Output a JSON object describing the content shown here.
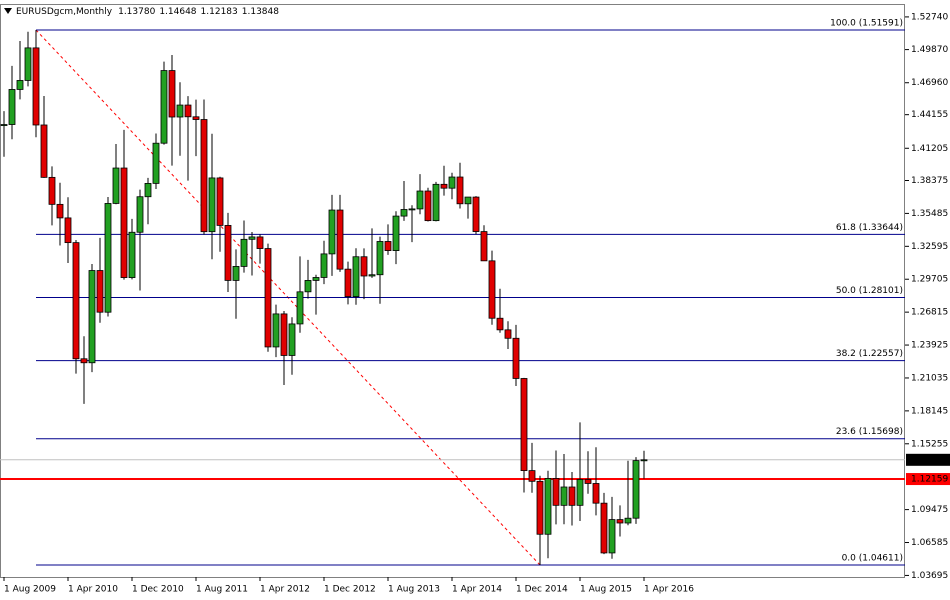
{
  "chart_data": {
    "type": "candlestick",
    "title": "EURUSDgcm,Monthly",
    "header_labels": [
      "1.13780",
      "1.14648",
      "1.12183",
      "1.13848"
    ],
    "categories": [
      "1 Aug 2009",
      null,
      null,
      null,
      null,
      null,
      null,
      null,
      "1 Apr 2010",
      null,
      null,
      null,
      null,
      null,
      null,
      null,
      "1 Dec 2010",
      null,
      null,
      null,
      null,
      null,
      null,
      null,
      "1 Aug 2011",
      null,
      null,
      null,
      null,
      null,
      null,
      null,
      "1 Apr 2012",
      null,
      null,
      null,
      null,
      null,
      null,
      null,
      "1 Dec 2012",
      null,
      null,
      null,
      null,
      null,
      null,
      null,
      "1 Aug 2013",
      null,
      null,
      null,
      null,
      null,
      null,
      null,
      "1 Apr 2014",
      null,
      null,
      null,
      null,
      null,
      null,
      null,
      "1 Dec 2014",
      null,
      null,
      null,
      null,
      null,
      null,
      null,
      "1 Aug 2015",
      null,
      null,
      null,
      null,
      null,
      null,
      null,
      "1 Apr 2016"
    ],
    "open": [
      1.432,
      1.4329,
      1.4637,
      1.4716,
      1.5002,
      1.4325,
      1.3865,
      1.3628,
      1.3509,
      1.3292,
      1.2272,
      1.2237,
      1.3047,
      1.2681,
      1.3636,
      1.3947,
      1.2985,
      1.3383,
      1.3695,
      1.3812,
      1.4165,
      1.4803,
      1.4395,
      1.45,
      1.4397,
      1.4373,
      1.3388,
      1.386,
      1.3443,
      1.296,
      1.3083,
      1.3321,
      1.3342,
      1.324,
      1.2376,
      1.2666,
      1.2301,
      1.2578,
      1.286,
      1.296,
      1.2986,
      1.3193,
      1.3578,
      1.3059,
      1.2818,
      1.3168,
      1.2999,
      1.301,
      1.3302,
      1.3222,
      1.3525,
      1.3583,
      1.3588,
      1.3745,
      1.3485,
      1.3804,
      1.377,
      1.3868,
      1.3633,
      1.3692,
      1.3389,
      1.3132,
      1.2628,
      1.2526,
      1.2452,
      1.2099,
      1.129,
      1.1196,
      1.0731,
      1.1221,
      1.0985,
      1.1146,
      1.0985,
      1.1212,
      1.1177,
      1.1004,
      1.0567,
      1.086,
      1.083,
      1.0872,
      1.1378
    ],
    "high": [
      1.4447,
      1.4844,
      1.5062,
      1.5144,
      1.51591,
      1.458,
      1.3962,
      1.3818,
      1.369,
      1.3315,
      1.247,
      1.3104,
      1.3334,
      1.3693,
      1.4158,
      1.4282,
      1.35,
      1.3757,
      1.3861,
      1.425,
      1.4881,
      1.494,
      1.47,
      1.4578,
      1.4548,
      1.4549,
      1.4248,
      1.387,
      1.3553,
      1.3233,
      1.3486,
      1.3385,
      1.3363,
      1.3283,
      1.2747,
      1.2692,
      1.2637,
      1.3171,
      1.314,
      1.301,
      1.3308,
      1.3711,
      1.3711,
      1.3125,
      1.3243,
      1.3242,
      1.3417,
      1.3345,
      1.3452,
      1.3567,
      1.3833,
      1.362,
      1.3893,
      1.3774,
      1.3825,
      1.3967,
      1.3906,
      1.3993,
      1.3677,
      1.37,
      1.3445,
      1.3222,
      1.2887,
      1.2601,
      1.257,
      1.2104,
      1.1534,
      1.1245,
      1.1289,
      1.1466,
      1.1436,
      1.1278,
      1.1714,
      1.146,
      1.1495,
      1.1094,
      1.1059,
      1.0985,
      1.1376,
      1.1408,
      1.14648
    ],
    "low": [
      1.4046,
      1.42,
      1.455,
      1.4664,
      1.4217,
      1.386,
      1.3443,
      1.3267,
      1.3113,
      1.2142,
      1.1876,
      1.2155,
      1.2588,
      1.2643,
      1.3629,
      1.2967,
      1.2969,
      1.2871,
      1.3453,
      1.3763,
      1.4152,
      1.3968,
      1.4055,
      1.3836,
      1.4051,
      1.3362,
      1.3146,
      1.3212,
      1.2858,
      1.2624,
      1.3029,
      1.3003,
      1.3108,
      1.2334,
      1.2287,
      1.2042,
      1.2132,
      1.25,
      1.28,
      1.266,
      1.2927,
      1.3,
      1.3035,
      1.275,
      1.2746,
      1.2796,
      1.2982,
      1.2755,
      1.3184,
      1.3103,
      1.3483,
      1.3296,
      1.3541,
      1.3477,
      1.3478,
      1.3705,
      1.3673,
      1.3592,
      1.3503,
      1.3366,
      1.3131,
      1.2571,
      1.25,
      1.2358,
      1.2033,
      1.1098,
      1.1095,
      1.04611,
      1.052,
      1.0818,
      1.0819,
      1.0808,
      1.0847,
      1.1087,
      1.0897,
      1.0557,
      1.0516,
      1.0711,
      1.081,
      1.0822,
      1.12183
    ],
    "close": [
      1.4329,
      1.4637,
      1.4716,
      1.5002,
      1.4325,
      1.3865,
      1.3628,
      1.3509,
      1.3292,
      1.2272,
      1.2237,
      1.3047,
      1.2681,
      1.3636,
      1.3947,
      1.2985,
      1.3383,
      1.3695,
      1.3812,
      1.4165,
      1.4803,
      1.4395,
      1.45,
      1.4397,
      1.4373,
      1.3388,
      1.386,
      1.3443,
      1.296,
      1.3083,
      1.3321,
      1.3342,
      1.324,
      1.2376,
      1.2666,
      1.2301,
      1.2578,
      1.286,
      1.296,
      1.2986,
      1.3193,
      1.3578,
      1.3059,
      1.2818,
      1.3168,
      1.2999,
      1.301,
      1.3302,
      1.3222,
      1.3525,
      1.3583,
      1.3588,
      1.3745,
      1.3485,
      1.3804,
      1.377,
      1.3868,
      1.3633,
      1.3692,
      1.3389,
      1.3132,
      1.2628,
      1.2526,
      1.2452,
      1.2099,
      1.129,
      1.1196,
      1.0731,
      1.1221,
      1.0985,
      1.1146,
      1.0985,
      1.1212,
      1.1177,
      1.1004,
      1.0567,
      1.086,
      1.083,
      1.0872,
      1.1378,
      1.13848
    ],
    "up_color": "#22a022",
    "down_color": "#e00000",
    "ylim": [
      1.03557,
      1.53786
    ],
    "yticks": [
      {
        "value": 1.5274,
        "label": "1.52740"
      },
      {
        "value": 1.4987,
        "label": "1.49870"
      },
      {
        "value": 1.4696,
        "label": "1.46960"
      },
      1.44155,
      1.41205,
      1.38375,
      1.35485,
      1.32595,
      1.29705,
      1.26815,
      1.23925,
      1.21035,
      1.18145,
      1.15255,
      1.09475,
      1.06585,
      1.03695
    ],
    "fibo": [
      {
        "label": "100.0 (1.51591)",
        "value": 1.51591
      },
      {
        "label": "61.8 (1.33644)",
        "value": 1.33644
      },
      {
        "label": "50.0 (1.28101)",
        "value": 1.28101
      },
      {
        "label": "38.2 (1.22557)",
        "value": 1.22557
      },
      {
        "label": "23.6 (1.15698)",
        "value": 1.15698
      },
      {
        "label": "0.0 (1.04611)",
        "value": 1.04611
      }
    ],
    "fibo_color": "#00008b",
    "bid": 1.13848,
    "hline": 1.12159,
    "hline_color": "#ff0000"
  }
}
